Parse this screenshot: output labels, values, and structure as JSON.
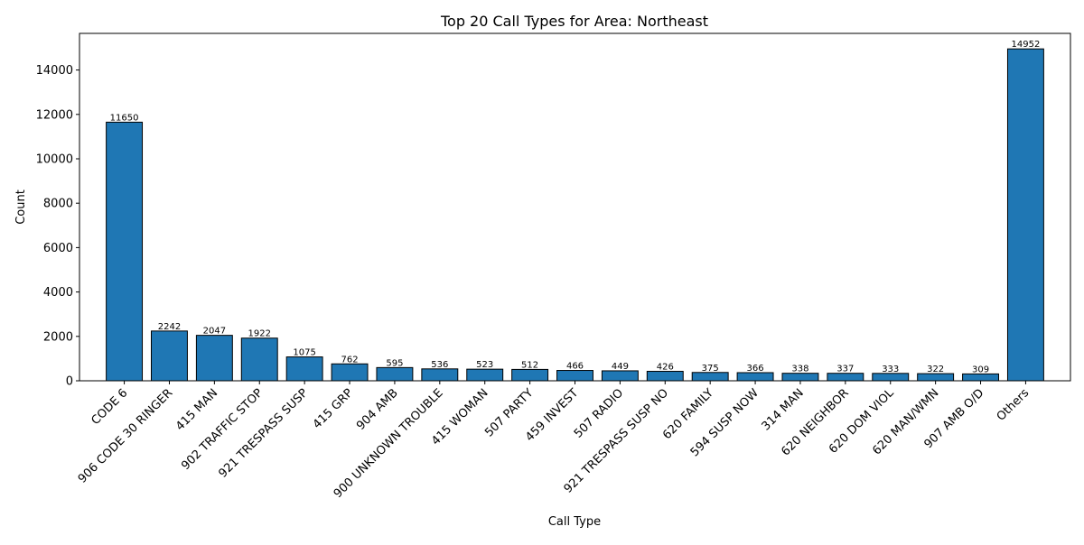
{
  "chart_data": {
    "type": "bar",
    "title": "Top 20 Call Types for Area: Northeast",
    "xlabel": "Call Type",
    "ylabel": "Count",
    "ylim": [
      0,
      15650
    ],
    "yticks": [
      0,
      2000,
      4000,
      6000,
      8000,
      10000,
      12000,
      14000
    ],
    "grid": false,
    "bar_color": "#1f77b4",
    "edge_color": "#000000",
    "categories": [
      "CODE 6",
      "906 CODE 30 RINGER",
      "415 MAN",
      "902 TRAFFIC STOP",
      "921 TRESPASS SUSP",
      "415 GRP",
      "904 AMB",
      "900 UNKNOWN TROUBLE",
      "415 WOMAN",
      "507 PARTY",
      "459 INVEST",
      "507 RADIO",
      "921 TRESPASS SUSP NO",
      "620 FAMILY",
      "594 SUSP NOW",
      "314 MAN",
      "620 NEIGHBOR",
      "620 DOM VIOL",
      "620 MAN/WMN",
      "907 AMB O/D",
      "Others"
    ],
    "values": [
      11650,
      2242,
      2047,
      1922,
      1075,
      762,
      595,
      536,
      523,
      512,
      466,
      449,
      426,
      375,
      366,
      338,
      337,
      333,
      322,
      309,
      14952
    ]
  }
}
